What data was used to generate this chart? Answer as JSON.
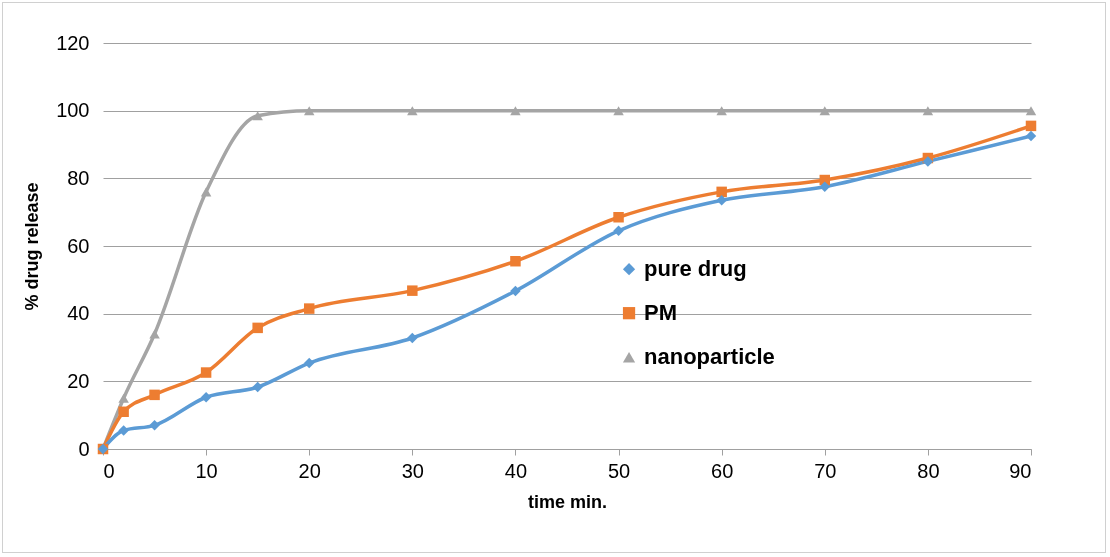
{
  "chart_data": {
    "type": "line",
    "xlabel": "time min.",
    "ylabel": "% drug release",
    "x": [
      0,
      2,
      5,
      10,
      15,
      20,
      30,
      40,
      50,
      60,
      70,
      80,
      90
    ],
    "series": [
      {
        "name": "pure drug",
        "color": "#5b9bd5",
        "marker": "diamond",
        "values": [
          0,
          5.5,
          7,
          15.3,
          18.3,
          25.4,
          32.8,
          46.7,
          64.5,
          73.5,
          77.5,
          85,
          92.5
        ]
      },
      {
        "name": "PM",
        "color": "#ed7d31",
        "marker": "square",
        "values": [
          0,
          11,
          16,
          22.6,
          35.8,
          41.5,
          46.8,
          55.5,
          68.5,
          76,
          79.5,
          86,
          95.5
        ]
      },
      {
        "name": "nanoparticle",
        "color": "#a5a5a5",
        "marker": "triangle",
        "values": [
          0,
          15,
          34,
          76,
          98.5,
          100,
          100,
          100,
          100,
          100,
          100,
          100,
          100
        ]
      }
    ],
    "xlim": [
      0,
      90
    ],
    "xticks": [
      0,
      10,
      20,
      30,
      40,
      50,
      60,
      70,
      80,
      90
    ],
    "ylim": [
      0,
      120
    ],
    "yticks": [
      0,
      20,
      40,
      60,
      80,
      100,
      120
    ],
    "grid": "y",
    "legend": "right",
    "line_style": "solid"
  }
}
